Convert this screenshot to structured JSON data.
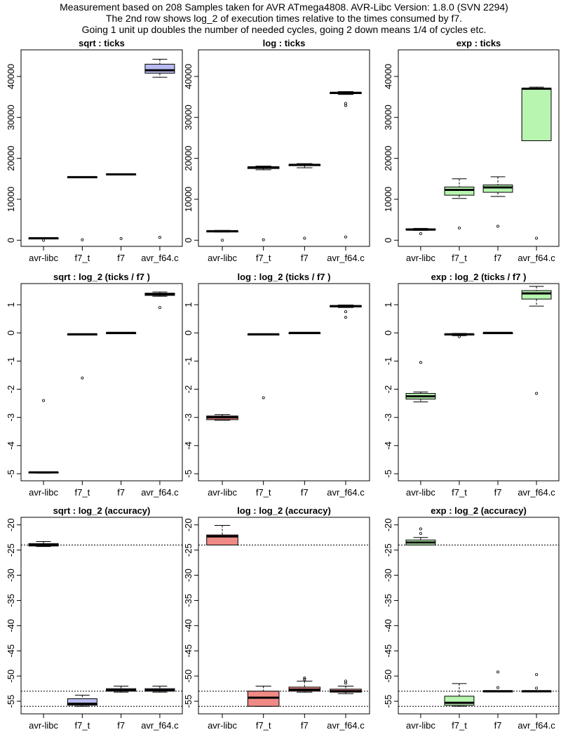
{
  "header": {
    "line1": "Measurement based on 208 Samples taken for AVR ATmega4808.  AVR-Libc Version: 1.8.0 (SVN 2294)",
    "line2": "The 2nd row shows log_2 of execution times relative to the times  consumed by f7.",
    "line3": "Going 1 unit up doubles the number of needed cycles, going 2 down means 1/4 of cycles etc."
  },
  "colors": {
    "sqrt": "#b8bcf2",
    "log": "#f08a86",
    "exp": "#b8f5b0"
  },
  "chart_data": [
    {
      "type": "box",
      "title": "sqrt :  ticks",
      "func": "sqrt",
      "categories": [
        "avr-libc",
        "f7_t",
        "f7",
        "avr_f64.c"
      ],
      "yticks": [
        0,
        10000,
        20000,
        30000,
        40000
      ],
      "ylim": [
        -1500,
        46500
      ],
      "boxes": [
        {
          "min": 400,
          "q1": 400,
          "median": 500,
          "q3": 550,
          "max": 600,
          "outliers": [
            0
          ]
        },
        {
          "min": 15300,
          "q1": 15300,
          "median": 15400,
          "q3": 15500,
          "max": 15500,
          "outliers": [
            100
          ]
        },
        {
          "min": 16000,
          "q1": 16000,
          "median": 16100,
          "q3": 16200,
          "max": 16200,
          "outliers": [
            400
          ]
        },
        {
          "min": 39800,
          "q1": 40800,
          "median": 41500,
          "q3": 43000,
          "max": 44200,
          "outliers": [
            700
          ]
        }
      ],
      "hlines": []
    },
    {
      "type": "box",
      "title": "log :  ticks",
      "func": "log",
      "categories": [
        "avr-libc",
        "f7_t",
        "f7",
        "avr_f64.c"
      ],
      "yticks": [
        0,
        10000,
        20000,
        30000,
        40000
      ],
      "ylim": [
        -1500,
        46500
      ],
      "boxes": [
        {
          "min": 2000,
          "q1": 2000,
          "median": 2200,
          "q3": 2300,
          "max": 2400,
          "outliers": [
            0
          ]
        },
        {
          "min": 17200,
          "q1": 17500,
          "median": 17800,
          "q3": 17900,
          "max": 18100,
          "outliers": [
            100
          ]
        },
        {
          "min": 17700,
          "q1": 18200,
          "median": 18400,
          "q3": 18500,
          "max": 18700,
          "outliers": [
            500
          ]
        },
        {
          "min": 35600,
          "q1": 35800,
          "median": 36000,
          "q3": 36100,
          "max": 36300,
          "outliers": [
            800,
            32900,
            33400
          ]
        }
      ],
      "hlines": []
    },
    {
      "type": "box",
      "title": "exp :  ticks",
      "func": "exp",
      "categories": [
        "avr-libc",
        "f7_t",
        "f7",
        "avr_f64.c"
      ],
      "yticks": [
        0,
        10000,
        20000,
        30000,
        40000
      ],
      "ylim": [
        -1500,
        46500
      ],
      "boxes": [
        {
          "min": 2400,
          "q1": 2500,
          "median": 2600,
          "q3": 2800,
          "max": 2900,
          "outliers": [
            1600
          ]
        },
        {
          "min": 10200,
          "q1": 11000,
          "median": 12300,
          "q3": 13000,
          "max": 15000,
          "outliers": [
            3000
          ]
        },
        {
          "min": 10700,
          "q1": 11700,
          "median": 12900,
          "q3": 13500,
          "max": 15500,
          "outliers": [
            3400
          ]
        },
        {
          "min": 24300,
          "q1": 24300,
          "median": 37000,
          "q3": 37100,
          "max": 37400,
          "outliers": [
            500
          ]
        }
      ],
      "hlines": []
    },
    {
      "type": "box",
      "title": "sqrt :  log_2 (ticks /  f7 )",
      "func": "sqrt",
      "categories": [
        "avr-libc",
        "f7_t",
        "f7",
        "avr_f64.c"
      ],
      "yticks": [
        -5,
        -4,
        -3,
        -2,
        -1,
        0,
        1
      ],
      "ylim": [
        -5.25,
        1.75
      ],
      "boxes": [
        {
          "min": -4.98,
          "q1": -4.97,
          "median": -4.95,
          "q3": -4.94,
          "max": -4.93,
          "outliers": [
            -2.4
          ]
        },
        {
          "min": -0.07,
          "q1": -0.06,
          "median": -0.05,
          "q3": -0.04,
          "max": -0.03,
          "outliers": [
            -1.6
          ]
        },
        {
          "min": -0.01,
          "q1": -0.005,
          "median": 0,
          "q3": 0.005,
          "max": 0.01,
          "outliers": []
        },
        {
          "min": 1.3,
          "q1": 1.33,
          "median": 1.37,
          "q3": 1.41,
          "max": 1.45,
          "outliers": [
            0.9
          ]
        }
      ],
      "hlines": []
    },
    {
      "type": "box",
      "title": "log :  log_2 (ticks /  f7 )",
      "func": "log",
      "categories": [
        "avr-libc",
        "f7_t",
        "f7",
        "avr_f64.c"
      ],
      "yticks": [
        -5,
        -4,
        -3,
        -2,
        -1,
        0,
        1
      ],
      "ylim": [
        -5.25,
        1.75
      ],
      "boxes": [
        {
          "min": -3.1,
          "q1": -3.08,
          "median": -3.0,
          "q3": -2.95,
          "max": -2.9,
          "outliers": []
        },
        {
          "min": -0.07,
          "q1": -0.06,
          "median": -0.05,
          "q3": -0.04,
          "max": -0.03,
          "outliers": [
            -2.3
          ]
        },
        {
          "min": -0.01,
          "q1": -0.005,
          "median": 0,
          "q3": 0.005,
          "max": 0.01,
          "outliers": []
        },
        {
          "min": 0.9,
          "q1": 0.92,
          "median": 0.95,
          "q3": 0.97,
          "max": 0.99,
          "outliers": [
            0.55,
            0.75
          ]
        }
      ],
      "hlines": []
    },
    {
      "type": "box",
      "title": "exp :  log_2 (ticks /  f7 )",
      "func": "exp",
      "categories": [
        "avr-libc",
        "f7_t",
        "f7",
        "avr_f64.c"
      ],
      "yticks": [
        -5,
        -4,
        -3,
        -2,
        -1,
        0,
        1
      ],
      "ylim": [
        -5.25,
        1.75
      ],
      "boxes": [
        {
          "min": -2.45,
          "q1": -2.35,
          "median": -2.25,
          "q3": -2.15,
          "max": -2.1,
          "outliers": [
            -1.05
          ]
        },
        {
          "min": -0.1,
          "q1": -0.07,
          "median": -0.05,
          "q3": -0.04,
          "max": -0.02,
          "outliers": [
            -0.13
          ]
        },
        {
          "min": -0.01,
          "q1": -0.005,
          "median": 0,
          "q3": 0.005,
          "max": 0.01,
          "outliers": []
        },
        {
          "min": 0.95,
          "q1": 1.2,
          "median": 1.4,
          "q3": 1.5,
          "max": 1.65,
          "outliers": [
            -2.15
          ]
        }
      ],
      "hlines": []
    },
    {
      "type": "box",
      "title": "sqrt : log_2 (accuracy)",
      "func": "sqrt",
      "categories": [
        "avr-libc",
        "f7_t",
        "f7",
        "avr_f64.c"
      ],
      "yticks": [
        -55,
        -50,
        -45,
        -40,
        -35,
        -30,
        -25,
        -20
      ],
      "ylim": [
        -57.5,
        -18.5
      ],
      "boxes": [
        {
          "min": -24.3,
          "q1": -24.2,
          "median": -24.0,
          "q3": -23.7,
          "max": -23.3,
          "outliers": []
        },
        {
          "min": -56.0,
          "q1": -55.8,
          "median": -55.5,
          "q3": -54.5,
          "max": -53.8,
          "outliers": []
        },
        {
          "min": -53.2,
          "q1": -53.0,
          "median": -52.8,
          "q3": -52.5,
          "max": -52.0,
          "outliers": []
        },
        {
          "min": -53.2,
          "q1": -53.0,
          "median": -52.8,
          "q3": -52.5,
          "max": -52.0,
          "outliers": []
        }
      ],
      "hlines": [
        -24.0,
        -53.0,
        -56.0
      ]
    },
    {
      "type": "box",
      "title": "log : log_2 (accuracy)",
      "func": "log",
      "categories": [
        "avr-libc",
        "f7_t",
        "f7",
        "avr_f64.c"
      ],
      "yticks": [
        -55,
        -50,
        -45,
        -40,
        -35,
        -30,
        -25,
        -20
      ],
      "ylim": [
        -57.5,
        -18.5
      ],
      "boxes": [
        {
          "min": -24.0,
          "q1": -24.0,
          "median": -22.3,
          "q3": -22.0,
          "max": -20.1,
          "outliers": []
        },
        {
          "min": -56.0,
          "q1": -56.0,
          "median": -54.3,
          "q3": -53.0,
          "max": -52.0,
          "outliers": []
        },
        {
          "min": -53.2,
          "q1": -53.0,
          "median": -52.7,
          "q3": -52.2,
          "max": -51.0,
          "outliers": [
            -50.4,
            -50.7
          ]
        },
        {
          "min": -53.5,
          "q1": -53.2,
          "median": -53.0,
          "q3": -52.6,
          "max": -52.0,
          "outliers": [
            -51.0,
            -51.4
          ]
        }
      ],
      "hlines": [
        -24.0,
        -53.0,
        -56.0
      ]
    },
    {
      "type": "box",
      "title": "exp : log_2 (accuracy)",
      "func": "exp",
      "categories": [
        "avr-libc",
        "f7_t",
        "f7",
        "avr_f64.c"
      ],
      "yticks": [
        -55,
        -50,
        -45,
        -40,
        -35,
        -30,
        -25,
        -20
      ],
      "ylim": [
        -57.5,
        -18.5
      ],
      "boxes": [
        {
          "min": -24.0,
          "q1": -24.0,
          "median": -23.5,
          "q3": -23.0,
          "max": -22.5,
          "outliers": [
            -21.7,
            -20.8
          ]
        },
        {
          "min": -56.0,
          "q1": -55.8,
          "median": -55.3,
          "q3": -54.0,
          "max": -51.5,
          "outliers": []
        },
        {
          "min": -53.1,
          "q1": -53.05,
          "median": -53.0,
          "q3": -52.95,
          "max": -52.9,
          "outliers": [
            -49.2,
            -52.3
          ]
        },
        {
          "min": -53.1,
          "q1": -53.05,
          "median": -53.0,
          "q3": -52.95,
          "max": -52.9,
          "outliers": [
            -49.7,
            -52.4
          ]
        }
      ],
      "hlines": [
        -24.0,
        -53.0,
        -56.0
      ]
    }
  ]
}
